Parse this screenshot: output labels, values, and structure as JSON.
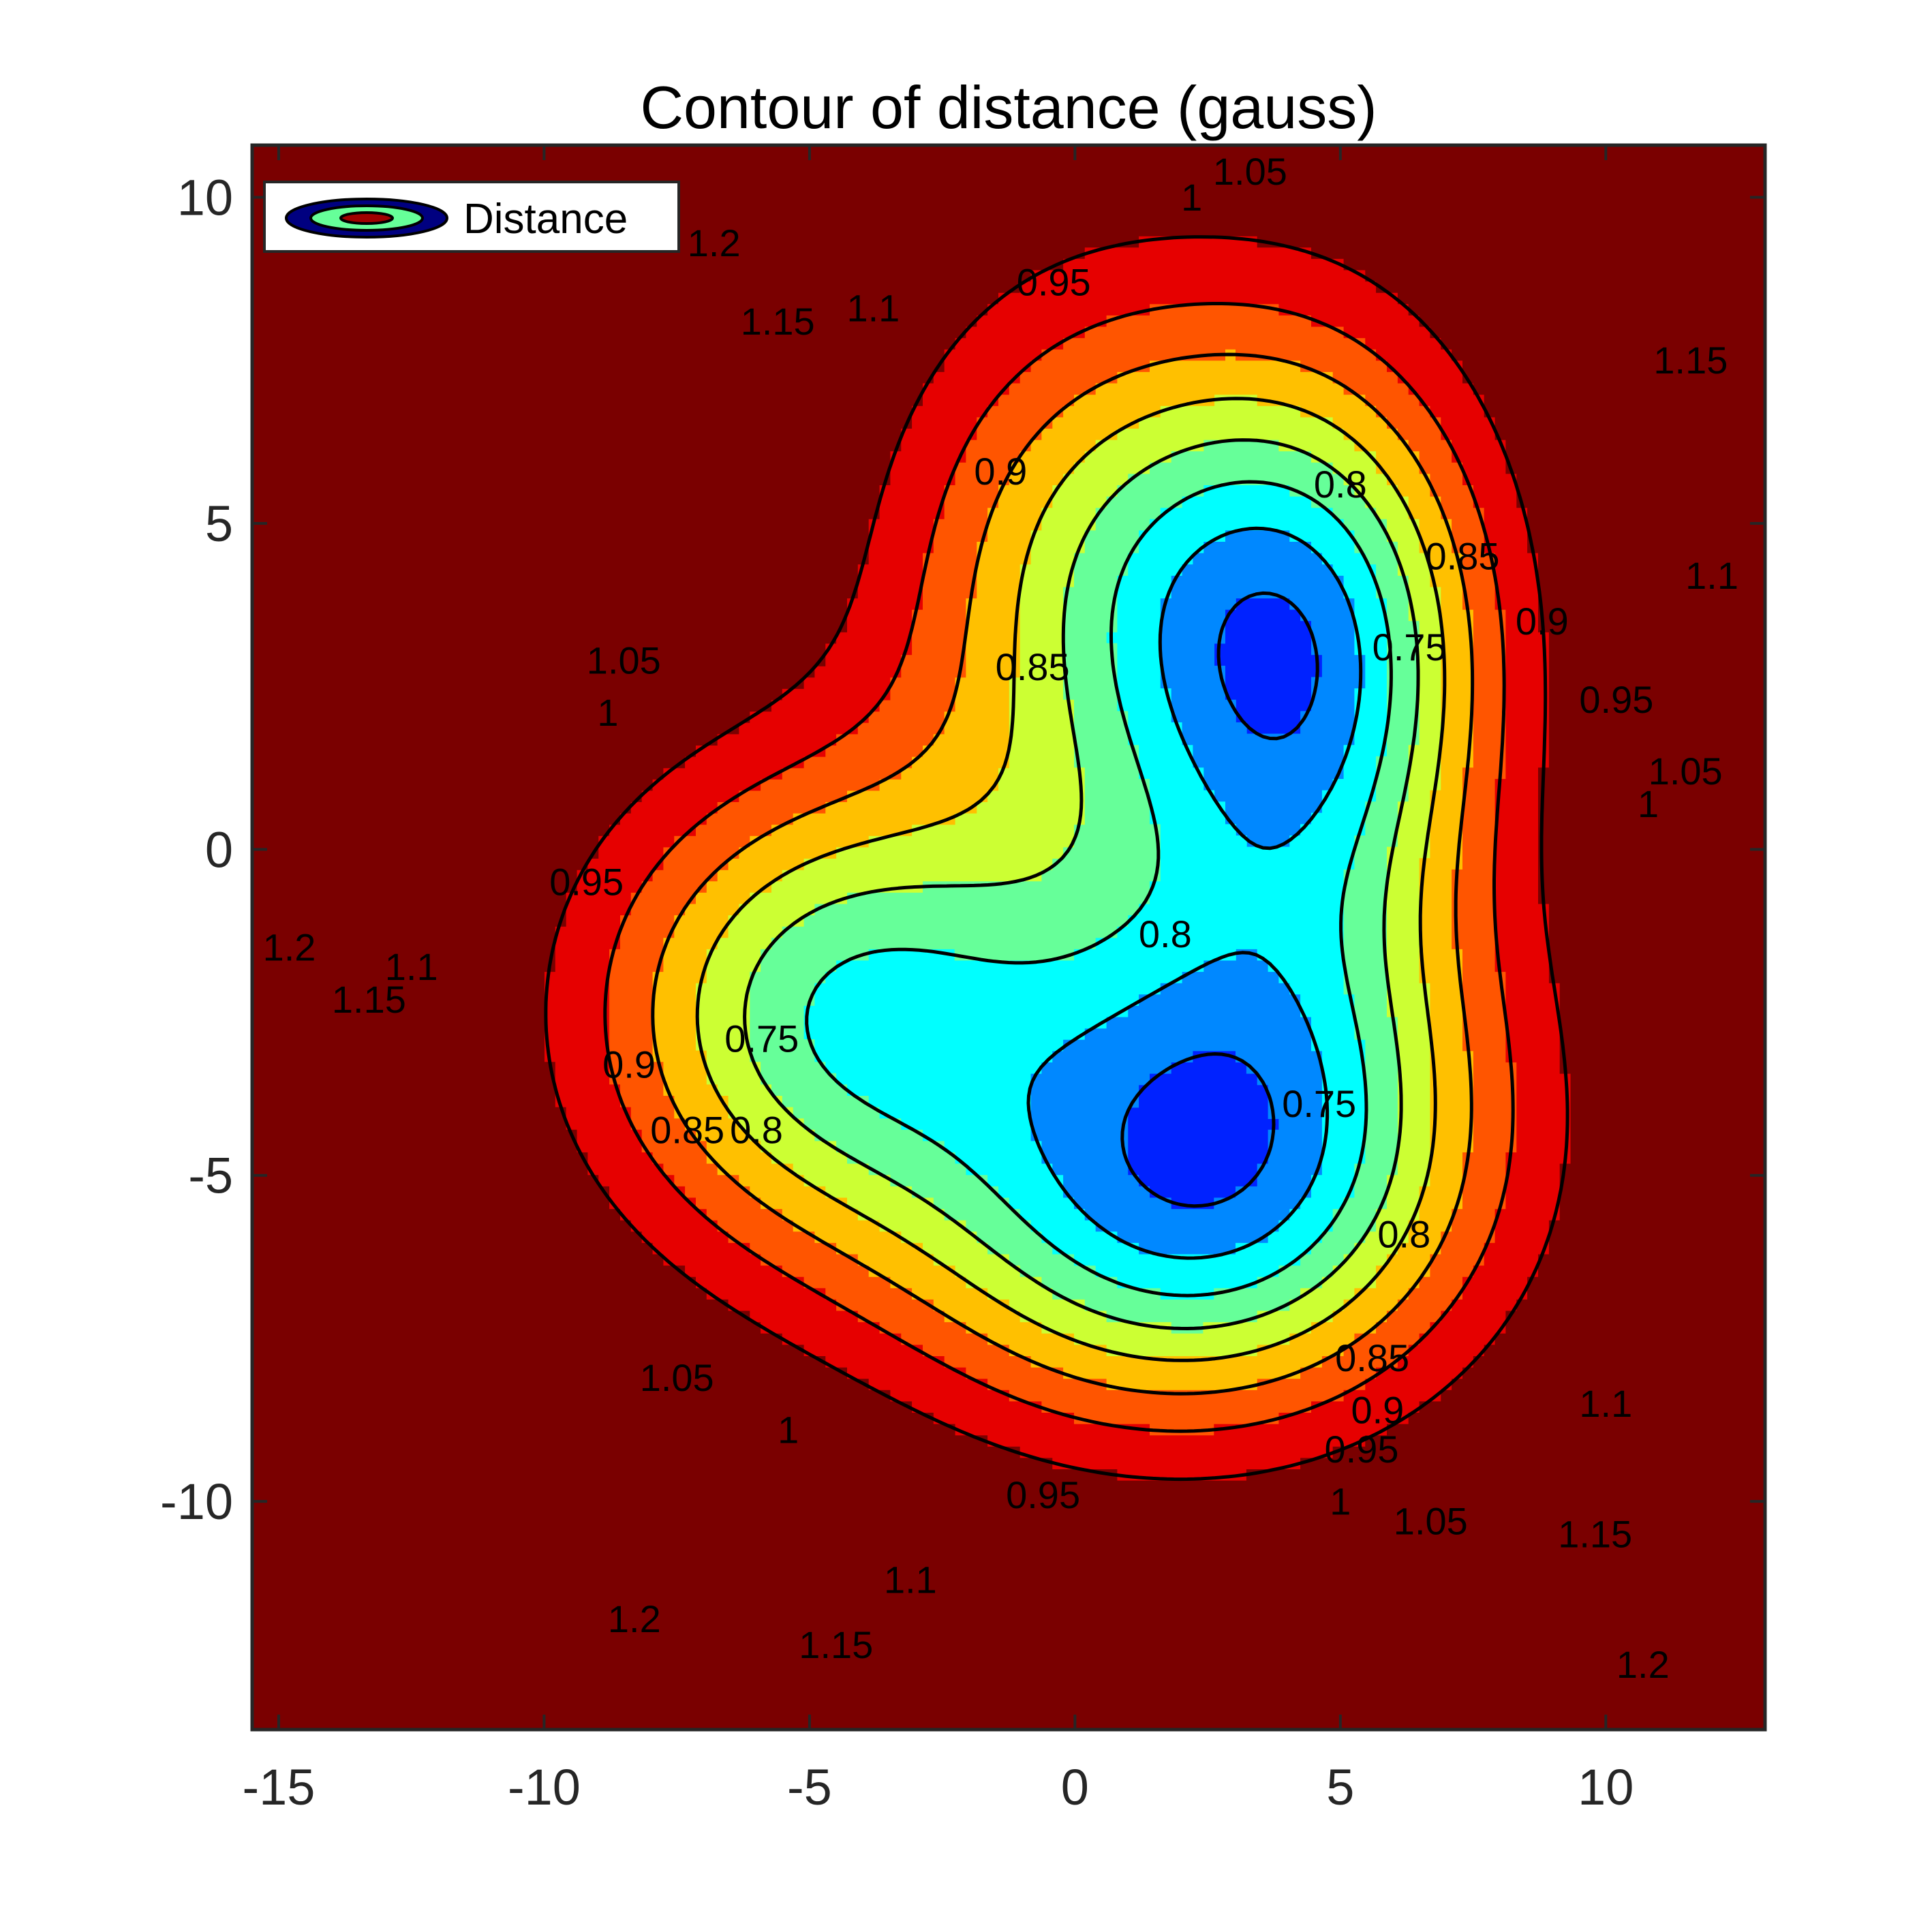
{
  "chart_data": {
    "type": "contour",
    "title": "Contour of distance (gauss)",
    "xlabel": "",
    "ylabel": "",
    "xlim": [
      -15.5,
      13
    ],
    "ylim": [
      -13.5,
      10.8
    ],
    "x_ticks": [
      -15,
      -10,
      -5,
      0,
      5,
      10
    ],
    "y_ticks": [
      10,
      5,
      0,
      -5,
      -10
    ],
    "x_tick_labels": [
      "-15",
      "-10",
      "-5",
      "0",
      "5",
      "10"
    ],
    "y_tick_labels": [
      "10",
      "5",
      "0",
      "-5",
      "-10"
    ],
    "levels": [
      0.75,
      0.8,
      0.85,
      0.9,
      0.95,
      1,
      1.05,
      1.1,
      1.15,
      1.2
    ],
    "level_colors": [
      "#000080",
      "#0000d0",
      "#0022ff",
      "#0088ff",
      "#00ffff",
      "#66ff99",
      "#ccff33",
      "#ffc000",
      "#ff5500",
      "#e60000",
      "#7a0000"
    ],
    "colormap": "jet",
    "legend": {
      "entries": [
        "Distance"
      ],
      "location": "top-left"
    },
    "contour_labels": [
      {
        "text": "1.2",
        "x": -14.8,
        "y": -1.5
      },
      {
        "text": "1.15",
        "x": -13.3,
        "y": -2.3
      },
      {
        "text": "1.1",
        "x": -12.5,
        "y": -1.8
      },
      {
        "text": "0.95",
        "x": -9.2,
        "y": -0.5
      },
      {
        "text": "0.9",
        "x": -8.4,
        "y": -3.3
      },
      {
        "text": "0.85",
        "x": -7.3,
        "y": -4.3
      },
      {
        "text": "0.8",
        "x": -6.0,
        "y": -4.3
      },
      {
        "text": "0.75",
        "x": -5.9,
        "y": -2.9
      },
      {
        "text": "1.05",
        "x": -8.5,
        "y": 2.9
      },
      {
        "text": "1",
        "x": -8.8,
        "y": 2.1
      },
      {
        "text": "1.2",
        "x": -6.8,
        "y": 9.3
      },
      {
        "text": "1.15",
        "x": -5.6,
        "y": 8.1
      },
      {
        "text": "1.1",
        "x": -3.8,
        "y": 8.3
      },
      {
        "text": "0.95",
        "x": -0.4,
        "y": 8.7
      },
      {
        "text": "1.05",
        "x": 3.3,
        "y": 10.4
      },
      {
        "text": "1",
        "x": 2.2,
        "y": 10.0
      },
      {
        "text": "0.9",
        "x": -1.4,
        "y": 5.8
      },
      {
        "text": "0.85",
        "x": -0.8,
        "y": 2.8
      },
      {
        "text": "0.8",
        "x": 5.0,
        "y": 5.6
      },
      {
        "text": "0.85",
        "x": 7.3,
        "y": 4.5
      },
      {
        "text": "0.9",
        "x": 8.8,
        "y": 3.5
      },
      {
        "text": "0.95",
        "x": 10.2,
        "y": 2.3
      },
      {
        "text": "1.05",
        "x": 11.5,
        "y": 1.2
      },
      {
        "text": "1",
        "x": 10.8,
        "y": 0.7
      },
      {
        "text": "1.1",
        "x": 12.0,
        "y": 4.2
      },
      {
        "text": "1.15",
        "x": 11.6,
        "y": 7.5
      },
      {
        "text": "0.75",
        "x": 6.3,
        "y": 3.1
      },
      {
        "text": "0.8",
        "x": 1.7,
        "y": -1.3
      },
      {
        "text": "0.75",
        "x": 4.6,
        "y": -3.9
      },
      {
        "text": "0.8",
        "x": 6.2,
        "y": -5.9
      },
      {
        "text": "0.85",
        "x": 5.6,
        "y": -7.8
      },
      {
        "text": "0.9",
        "x": 5.7,
        "y": -8.6
      },
      {
        "text": "0.95",
        "x": 5.4,
        "y": -9.2
      },
      {
        "text": "1",
        "x": 5.0,
        "y": -10.0
      },
      {
        "text": "1.05",
        "x": 6.7,
        "y": -10.3
      },
      {
        "text": "1.1",
        "x": 10.0,
        "y": -8.5
      },
      {
        "text": "1.15",
        "x": 9.8,
        "y": -10.5
      },
      {
        "text": "1.2",
        "x": 10.7,
        "y": -12.5
      },
      {
        "text": "0.95",
        "x": -0.6,
        "y": -9.9
      },
      {
        "text": "1.05",
        "x": -7.5,
        "y": -8.1
      },
      {
        "text": "1",
        "x": -5.4,
        "y": -8.9
      },
      {
        "text": "1.1",
        "x": -3.1,
        "y": -11.2
      },
      {
        "text": "1.15",
        "x": -4.5,
        "y": -12.2
      },
      {
        "text": "1.2",
        "x": -8.3,
        "y": -11.8
      }
    ]
  }
}
